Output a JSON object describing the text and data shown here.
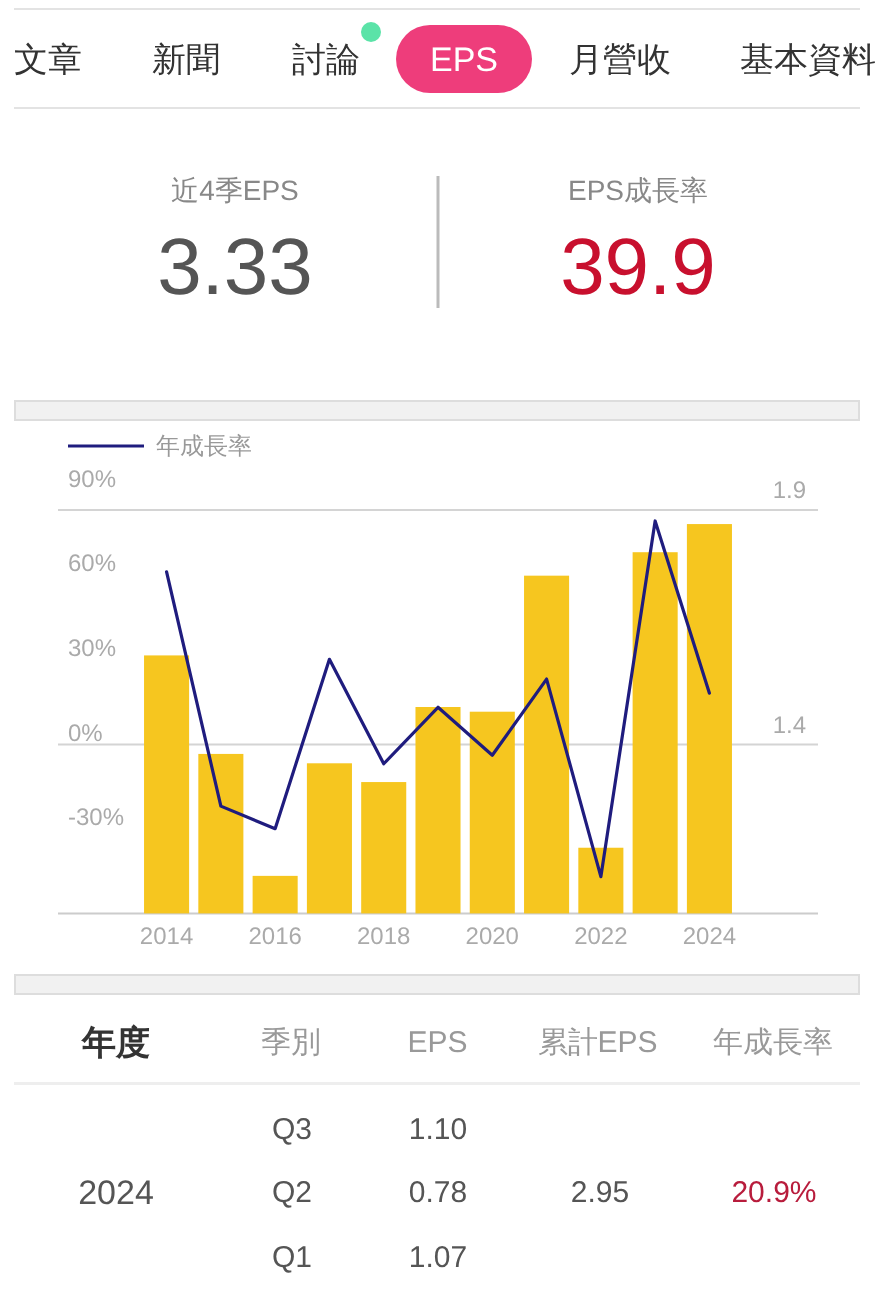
{
  "chart_data": [
    {
      "type": "other",
      "annotations": [
        "文章",
        "新聞",
        "討論",
        "EPS",
        "月營收",
        "基本資料",
        "近4季EPS",
        "3.33",
        "EPS成長率",
        "39.9"
      ]
    },
    {
      "type": "bar",
      "categories": [
        "2014",
        null,
        "2016",
        null,
        "2018",
        null,
        "2020",
        null,
        "2022",
        null,
        "2024"
      ],
      "series": [
        {
          "type": "bar",
          "color": "#f6c61f",
          "values": [
            1.59,
            1.38,
            1.12,
            1.36,
            1.32,
            1.48,
            1.47,
            1.76,
            1.18,
            1.81,
            1.87
          ]
        },
        {
          "type": "line",
          "name": "年成長率",
          "color": "#1f1c7e",
          "axis": "y2",
          "values": [
            57,
            -26,
            -34,
            26,
            -11,
            9,
            -8,
            19,
            -51,
            75,
            14
          ]
        }
      ],
      "ylim": [
        1.04,
        1.9
      ],
      "yticks": [
        1.4,
        1.9
      ],
      "y2lim": [
        -64,
        90
      ],
      "y2ticks": [
        {
          "value": -30,
          "label": "-30%"
        },
        {
          "value": 0,
          "label": "0%"
        },
        {
          "value": 30,
          "label": "30%"
        },
        {
          "value": 60,
          "label": "60%"
        },
        {
          "value": 90,
          "label": "90%"
        }
      ],
      "grid": "y",
      "legend": "top left"
    },
    {
      "type": "other",
      "annotations": [
        "年度",
        "季別",
        "EPS",
        "累計EPS",
        "年成長率",
        "Q3",
        "1.10",
        "2024",
        "Q2",
        "0.78",
        "2.95",
        "20.9%",
        "Q1",
        "1.07"
      ]
    }
  ]
}
